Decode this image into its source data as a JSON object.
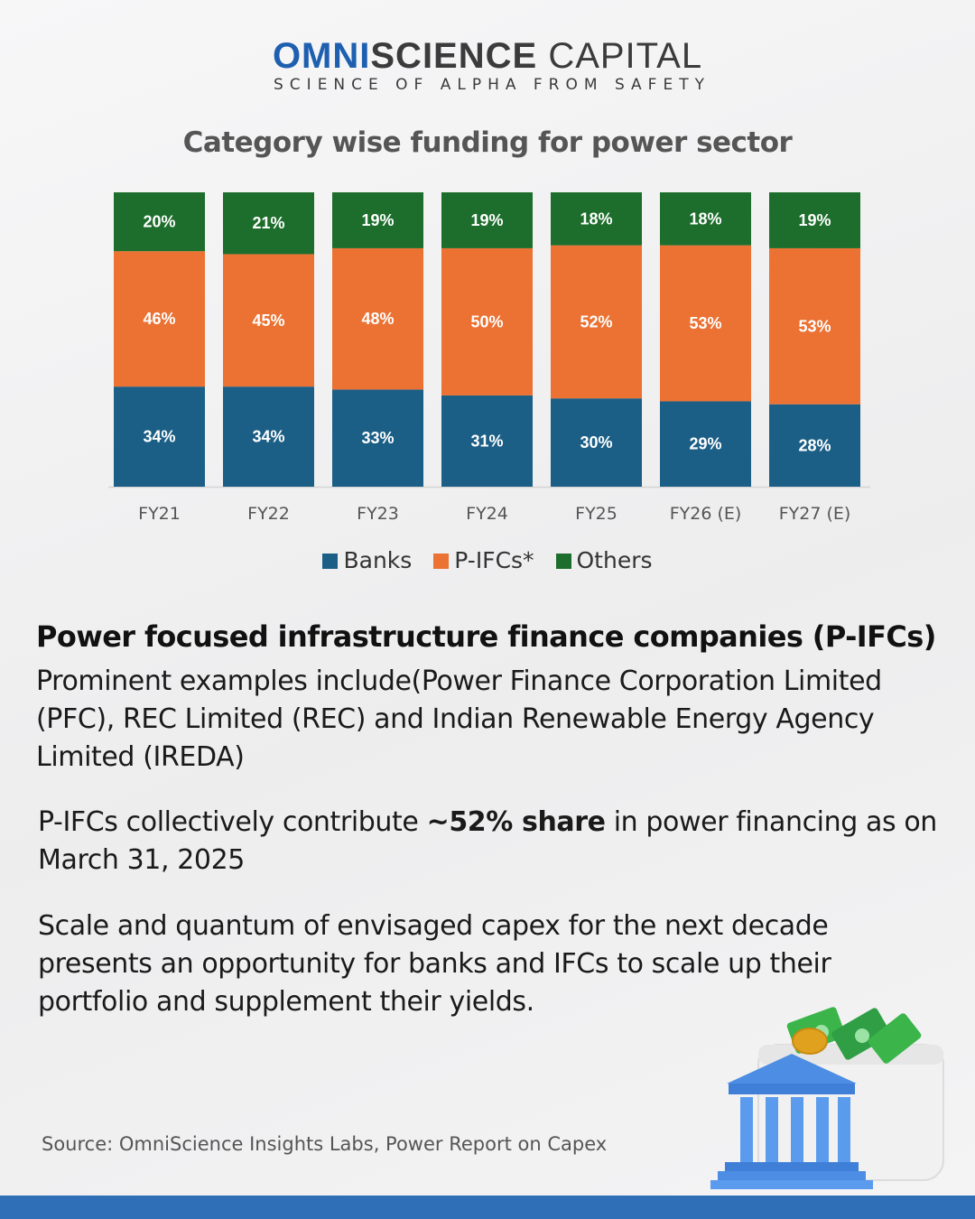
{
  "brand": {
    "omni": "OMNI",
    "science": "SCIENCE",
    "capital": "CAPITAL",
    "tagline": "SCIENCE OF ALPHA FROM SAFETY"
  },
  "colors": {
    "brand_blue": "#1f5fb0",
    "banks": "#1c5f86",
    "pifcs": "#eb7233",
    "others": "#1d6e2c",
    "footer": "#2f6fb8"
  },
  "chart_data": {
    "type": "bar",
    "stacked": true,
    "title": "Category wise funding for power sector",
    "categories": [
      "FY21",
      "FY22",
      "FY23",
      "FY24",
      "FY25",
      "FY26 (E)",
      "FY27 (E)"
    ],
    "series": [
      {
        "name": "Banks",
        "values": [
          34,
          34,
          33,
          31,
          30,
          29,
          28
        ],
        "labels": [
          "34%",
          "34%",
          "33%",
          "31%",
          "30%",
          "29%",
          "28%"
        ]
      },
      {
        "name": "P-IFCs*",
        "values": [
          46,
          45,
          48,
          50,
          52,
          53,
          53
        ],
        "labels": [
          "46%",
          "45%",
          "48%",
          "50%",
          "52%",
          "53%",
          "53%"
        ]
      },
      {
        "name": "Others",
        "values": [
          20,
          21,
          19,
          19,
          18,
          18,
          19
        ],
        "labels": [
          "20%",
          "21%",
          "19%",
          "19%",
          "18%",
          "18%",
          "19%"
        ]
      }
    ],
    "ylim": [
      0,
      100
    ],
    "legend_position": "bottom",
    "grid": false
  },
  "content": {
    "heading": "Power focused infrastructure finance companies (P-IFCs)",
    "p1": "Prominent examples include(Power Finance Corporation Limited (PFC), REC Limited (REC) and Indian Renewable Energy Agency Limited (IREDA)",
    "p2_pre": "P-IFCs collectively contribute ",
    "p2_bold": "~52% share",
    "p2_post": " in power financing as on March 31, 2025",
    "p3": "Scale and quantum of envisaged capex for the next decade presents an opportunity for banks and IFCs to scale up their portfolio and supplement their yields.",
    "source": "Source: OmniScience Insights Labs, Power Report on Capex"
  },
  "illustration": {
    "name": "bank-with-money-icon"
  }
}
